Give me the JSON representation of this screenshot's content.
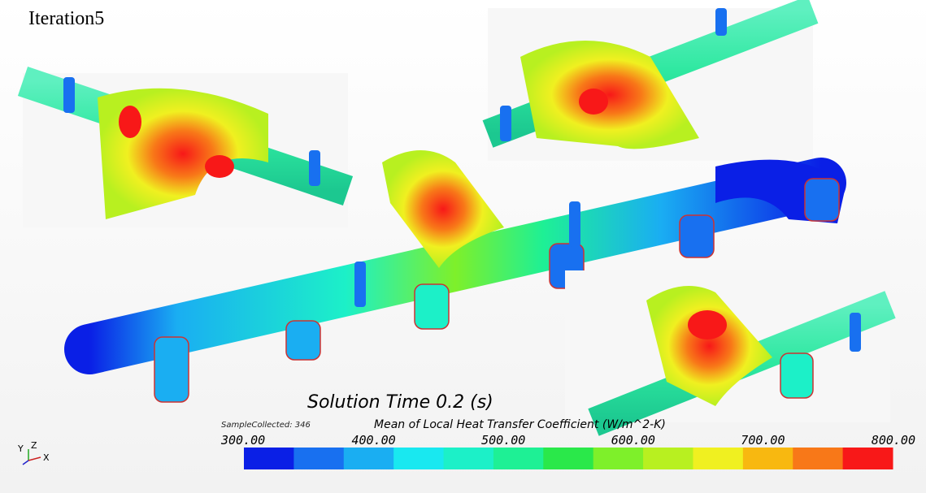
{
  "title": "Iteration5",
  "solution_time": "Solution Time 0.2 (s)",
  "sample_collected": "SampleCollected: 346",
  "colorbar": {
    "label": "Mean of Local Heat Transfer Coefficient (W/m^2-K)",
    "ticks": [
      "300.00",
      "400.00",
      "500.00",
      "600.00",
      "700.00",
      "800.00"
    ],
    "colors": [
      "#0a1fe6",
      "#1870f0",
      "#1aaef2",
      "#19e8f0",
      "#1cf0c8",
      "#1ef095",
      "#2ae84a",
      "#7ef02a",
      "#b8f020",
      "#f0f020",
      "#f8b810",
      "#f87818",
      "#f81818"
    ]
  },
  "axes_triad": {
    "y": "Y",
    "z": "Z",
    "x": "X"
  }
}
